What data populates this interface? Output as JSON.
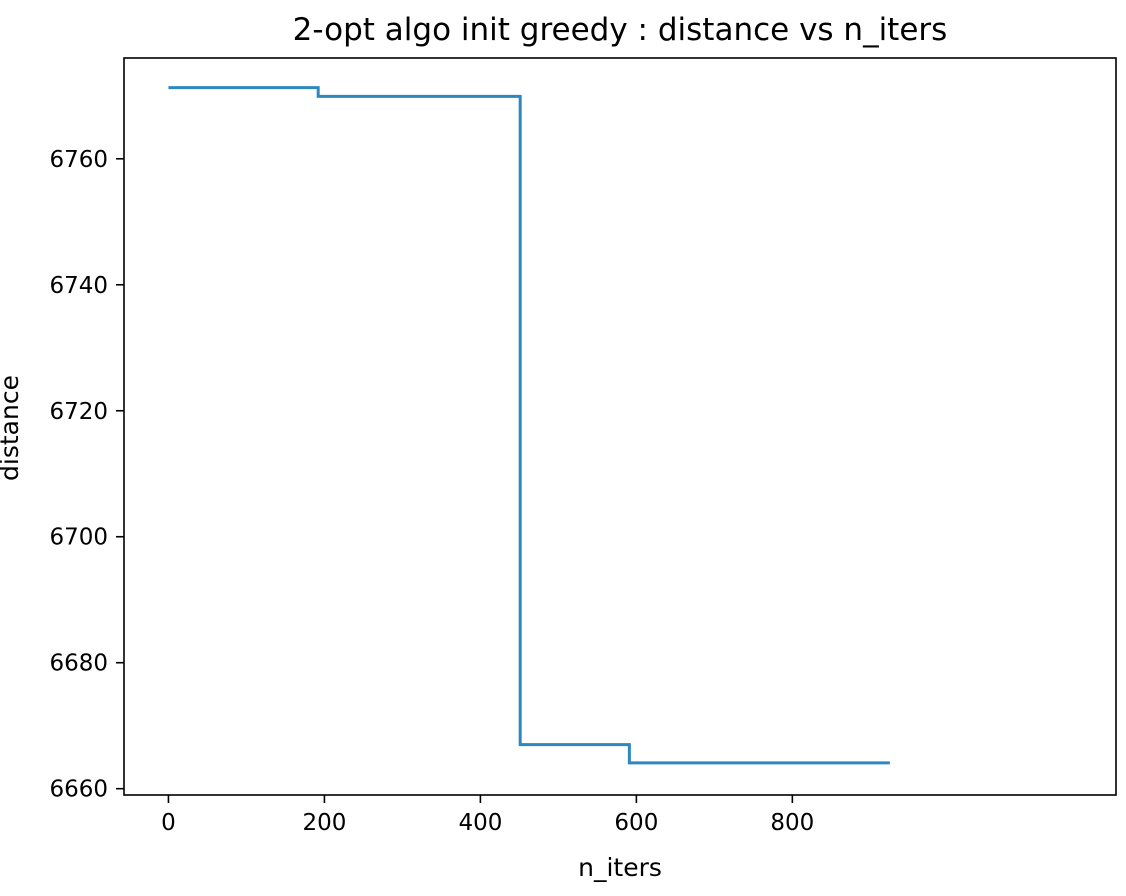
{
  "chart_data": {
    "type": "line",
    "title": "2-opt algo init greedy : distance vs n_iters",
    "xlabel": "n_iters",
    "ylabel": "distance",
    "xlim": [
      -57,
      1215
    ],
    "ylim": [
      6659,
      6776
    ],
    "xticks": [
      0,
      200,
      400,
      600,
      800
    ],
    "yticks": [
      6660,
      6680,
      6700,
      6720,
      6740,
      6760
    ],
    "grid": false,
    "legend": "none",
    "series": [
      {
        "color": "#2e88c0",
        "x": [
          0,
          192,
          192,
          451,
          451,
          591,
          591,
          925
        ],
        "y": [
          6771.3,
          6771.3,
          6769.9,
          6769.9,
          6667.0,
          6667.0,
          6664.1,
          6664.1
        ]
      }
    ]
  }
}
